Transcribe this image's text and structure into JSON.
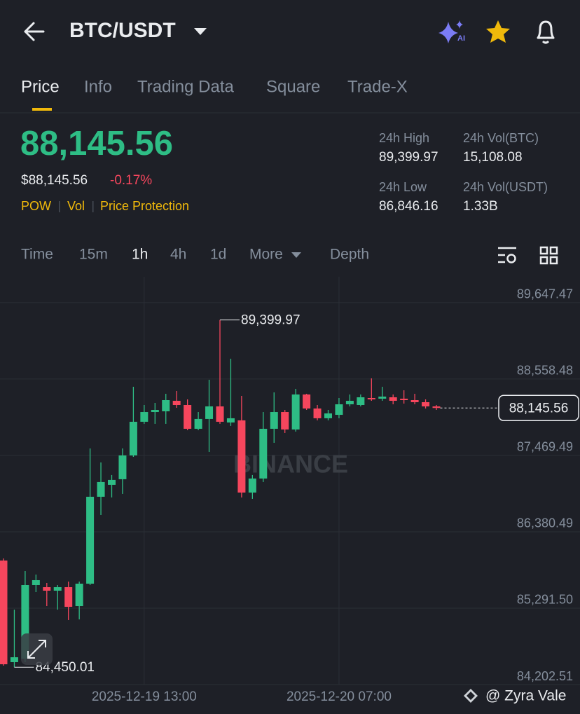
{
  "header": {
    "pair": "BTC/USDT"
  },
  "tabs": [
    "Price",
    "Info",
    "Trading Data",
    "Square",
    "Trade-X"
  ],
  "active_tab": 0,
  "ticker": {
    "last_price": "88,145.56",
    "usd_price": "$88,145.56",
    "change": "-0.17%",
    "tags": [
      "POW",
      "Vol",
      "Price Protection"
    ],
    "stats": [
      {
        "label": "24h High",
        "value": "89,399.97"
      },
      {
        "label": "24h Vol(BTC)",
        "value": "15,108.08"
      },
      {
        "label": "24h Low",
        "value": "86,846.16"
      },
      {
        "label": "24h Vol(USDT)",
        "value": "1.33B"
      }
    ]
  },
  "intervals": [
    "Time",
    "15m",
    "1h",
    "4h",
    "1d",
    "More",
    "Depth"
  ],
  "active_interval": 2,
  "chart_data": {
    "type": "candlestick",
    "watermark": "BINANCE",
    "x": [
      null,
      null,
      null,
      null,
      null,
      null,
      null,
      null,
      null,
      null,
      null,
      null,
      null,
      "2025-12-19 13:00",
      null,
      null,
      null,
      null,
      null,
      null,
      null,
      null,
      null,
      null,
      null,
      null,
      null,
      null,
      null,
      null,
      null,
      "2025-12-20 07:00",
      null,
      null,
      null,
      null,
      null,
      null,
      null,
      null,
      null
    ],
    "open": [
      85971,
      84522,
      84572,
      85621,
      85591,
      85541,
      85591,
      85321,
      85641,
      86880,
      87050,
      87130,
      87469,
      87949,
      88088,
      88098,
      88248,
      88188,
      87849,
      87989,
      88168,
      87939,
      87969,
      86940,
      87140,
      87849,
      88088,
      87839,
      88338,
      88138,
      87999,
      88048,
      88198,
      88188,
      88288,
      88278,
      88298,
      88278,
      88258,
      88228,
      88168
    ],
    "high": [
      86001,
      85271,
      85821,
      85771,
      85651,
      85621,
      85671,
      85671,
      87569,
      87369,
      87190,
      87569,
      88448,
      88188,
      88218,
      88348,
      88388,
      88268,
      88088,
      88548,
      89399.97,
      88848,
      88318,
      87190,
      88088,
      88368,
      88118,
      88418,
      88348,
      88188,
      88118,
      88288,
      88338,
      88338,
      88568,
      88448,
      88338,
      88398,
      88348,
      88268,
      88188
    ],
    "low": [
      84472,
      84450.01,
      84522,
      85521,
      85321,
      85271,
      85122,
      85132,
      85621,
      86620,
      86870,
      86920,
      87449,
      87919,
      87919,
      87919,
      88148,
      87829,
      87829,
      87519,
      87919,
      87889,
      86870,
      86850,
      87090,
      87649,
      87789,
      87809,
      88118,
      87969,
      87969,
      87999,
      88168,
      88168,
      88248,
      88248,
      88198,
      88208,
      88198,
      88138,
      88118
    ],
    "close": [
      84492,
      84592,
      85621,
      85691,
      85541,
      85591,
      85311,
      85641,
      86880,
      87090,
      87120,
      87469,
      87949,
      88088,
      88118,
      88258,
      88188,
      87849,
      87989,
      88168,
      87949,
      87999,
      86940,
      87140,
      87849,
      88088,
      87839,
      88338,
      88138,
      87999,
      88068,
      88198,
      88248,
      88298,
      88268,
      88308,
      88248,
      88258,
      88228,
      88168,
      88145.56
    ],
    "up_color": "#2ebd85",
    "down_color": "#f6465d",
    "ylim": [
      84202.51,
      90016
    ],
    "yticks": [
      {
        "value": 84202.51,
        "label": "84,202.51"
      },
      {
        "value": 85291.5,
        "label": "85,291.50"
      },
      {
        "value": 86380.49,
        "label": "86,380.49"
      },
      {
        "value": 87469.49,
        "label": "87,469.49"
      },
      {
        "value": 88558.48,
        "label": "88,558.48"
      },
      {
        "value": 89647.47,
        "label": "89,647.47"
      }
    ],
    "grid": true,
    "high_label": {
      "value": 89399.97,
      "label": "89,399.97"
    },
    "low_label": {
      "value": 84450.01,
      "label": "84,450.01"
    },
    "last_label": {
      "value": 88145.56,
      "label": "88,145.56"
    }
  },
  "credit": "@ Zyra Vale"
}
